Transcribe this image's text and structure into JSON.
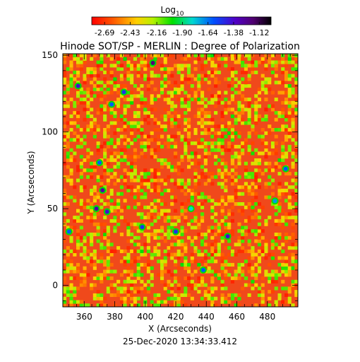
{
  "chart_data": {
    "type": "heatmap",
    "title": "Hinode SOT/SP - MERLIN : Degree of Polarization",
    "xlabel": "X (Arcseconds)",
    "ylabel": "Y (Arcseconds)",
    "timestamp": "25-Dec-2020 13:34:33.412",
    "xlim": [
      346,
      500
    ],
    "ylim": [
      -14,
      151
    ],
    "x_ticks": [
      360,
      380,
      400,
      420,
      440,
      460,
      480
    ],
    "y_ticks": [
      0,
      50,
      100,
      150
    ],
    "colorbar": {
      "label_base": "Log",
      "label_sub": "10",
      "range": [
        -2.82,
        -1.0
      ],
      "tick_values": [
        -2.69,
        -2.43,
        -2.16,
        -1.9,
        -1.64,
        -1.38,
        -1.12
      ],
      "tick_labels": [
        "-2.69",
        "-2.43",
        "-2.16",
        "-1.90",
        "-1.64",
        "-1.38",
        "-1.12"
      ],
      "colormap": "rainbow (red, orange, yellow, green, cyan, blue, violet, black)"
    },
    "field": {
      "background_level": -2.45,
      "speckle_range": [
        -2.75,
        -2.05
      ],
      "dominant_color": "#f0491b",
      "network_patches": [
        {
          "x": 405,
          "y": 145,
          "value": -1.2
        },
        {
          "x": 372,
          "y": 62,
          "value": -1.3
        },
        {
          "x": 368,
          "y": 50,
          "value": -1.3
        },
        {
          "x": 375,
          "y": 48,
          "value": -1.4
        },
        {
          "x": 386,
          "y": 126,
          "value": -1.5
        },
        {
          "x": 356,
          "y": 130,
          "value": -1.4
        },
        {
          "x": 378,
          "y": 118,
          "value": -1.6
        },
        {
          "x": 420,
          "y": 35,
          "value": -1.5
        },
        {
          "x": 398,
          "y": 38,
          "value": -1.5
        },
        {
          "x": 454,
          "y": 32,
          "value": -1.4
        },
        {
          "x": 492,
          "y": 76,
          "value": -1.6
        },
        {
          "x": 438,
          "y": 10,
          "value": -1.6
        },
        {
          "x": 370,
          "y": 80,
          "value": -1.6
        },
        {
          "x": 350,
          "y": 35,
          "value": -1.6
        },
        {
          "x": 485,
          "y": 55,
          "value": -1.7
        },
        {
          "x": 430,
          "y": 50,
          "value": -1.8
        }
      ]
    }
  }
}
